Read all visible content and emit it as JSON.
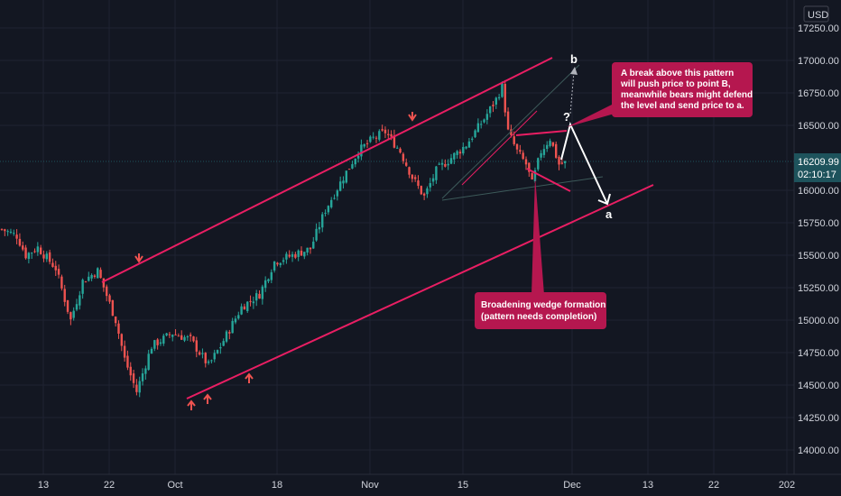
{
  "chart_data": {
    "type": "candlestick",
    "currency": "USD",
    "x_tick_labels": [
      "13",
      "22",
      "Oct",
      "18",
      "Nov",
      "15",
      "Dec",
      "13",
      "22",
      "202"
    ],
    "y_tick_labels": [
      "14000.00",
      "14250.00",
      "14500.00",
      "14750.00",
      "15000.00",
      "15250.00",
      "15500.00",
      "15750.00",
      "16000.00",
      "16500.00",
      "16750.00",
      "17000.00",
      "17250.00"
    ],
    "ylim": [
      13900,
      17330
    ],
    "last_price": {
      "value": 16209.99,
      "label": "16209.99",
      "countdown": "02:10:17"
    },
    "close_path": [
      [
        0,
        15700
      ],
      [
        5,
        15650
      ],
      [
        8,
        15500
      ],
      [
        12,
        15560
      ],
      [
        18,
        15400
      ],
      [
        23,
        15000
      ],
      [
        27,
        15300
      ],
      [
        32,
        15380
      ],
      [
        38,
        15000
      ],
      [
        41,
        14700
      ],
      [
        45,
        14450
      ],
      [
        50,
        14800
      ],
      [
        57,
        14900
      ],
      [
        63,
        14850
      ],
      [
        69,
        14650
      ],
      [
        73,
        14800
      ],
      [
        80,
        15100
      ],
      [
        86,
        15200
      ],
      [
        91,
        15450
      ],
      [
        97,
        15500
      ],
      [
        103,
        15550
      ],
      [
        108,
        15850
      ],
      [
        114,
        16100
      ],
      [
        119,
        16300
      ],
      [
        124,
        16400
      ],
      [
        128,
        16450
      ],
      [
        133,
        16300
      ],
      [
        137,
        16100
      ],
      [
        141,
        15950
      ],
      [
        145,
        16150
      ],
      [
        150,
        16250
      ],
      [
        155,
        16350
      ],
      [
        161,
        16550
      ],
      [
        165,
        16700
      ],
      [
        167,
        16800
      ],
      [
        169,
        16450
      ],
      [
        172,
        16300
      ],
      [
        175,
        16200
      ],
      [
        177,
        16050
      ],
      [
        180,
        16300
      ],
      [
        183,
        16400
      ],
      [
        186,
        16200
      ],
      [
        188,
        16210
      ]
    ],
    "annotations": {
      "callout_top": [
        "A break above this pattern",
        "will push price to point B,",
        "meanwhile bears might defend",
        "the level and send price to a."
      ],
      "callout_bottom": [
        "Broadening wedge formation",
        "(pattern needs completion)"
      ],
      "label_b": "b",
      "label_a": "a",
      "label_q": "?"
    }
  },
  "colors": {
    "background": "#131722",
    "grid": "#1f2332",
    "up": "#26a69a",
    "down": "#ef5350",
    "channel": "#e91e63",
    "callout": "#b5174f",
    "last_price_bg": "#1e535c",
    "text": "#d1d4dc"
  }
}
